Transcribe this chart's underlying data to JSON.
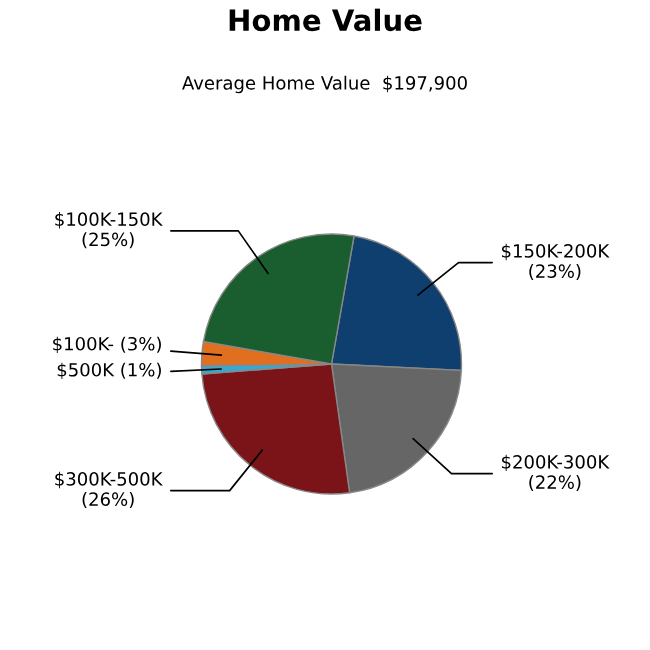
{
  "chart_data": {
    "type": "pie",
    "title": "Home Value",
    "subtitle": "Average Home Value  $197,900",
    "categories": [
      "$150K-200K",
      "$200K-300K",
      "$300K-500K",
      "$500K",
      "$100K-",
      "$100K-150K"
    ],
    "values": [
      23,
      22,
      26,
      1,
      3,
      25
    ],
    "value_labels": [
      "(23%)",
      "(22%)",
      "(26%)",
      "(1%)",
      "(3%)",
      "(25%)"
    ],
    "colors": [
      "#0e3f6e",
      "#666666",
      "#7a1418",
      "#3aa7d0",
      "#e07020",
      "#1a5e30"
    ]
  }
}
